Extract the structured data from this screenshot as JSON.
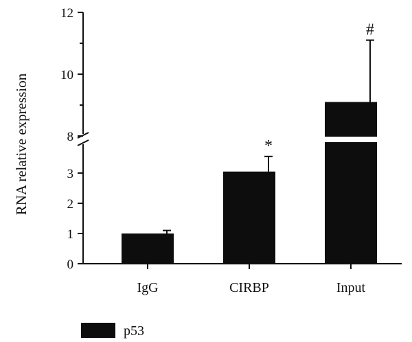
{
  "chart_data": {
    "type": "bar",
    "title": "",
    "ylabel": "RNA relative expression",
    "xlabel": "",
    "categories": [
      "IgG",
      "CIRBP",
      "Input"
    ],
    "series": [
      {
        "name": "p53",
        "values": [
          1.0,
          3.05,
          9.1
        ],
        "errors": [
          0.1,
          0.5,
          2.0
        ],
        "significance": [
          "",
          "*",
          "#"
        ]
      }
    ],
    "axis_break": {
      "lower": [
        0,
        3.6
      ],
      "upper": [
        8,
        12
      ]
    },
    "yticks_lower": [
      0,
      1,
      2,
      3
    ],
    "yticks_upper": [
      8,
      10,
      12
    ],
    "bar_color": "#0d0d0d",
    "legend_position": "bottom-left",
    "grid": false
  }
}
